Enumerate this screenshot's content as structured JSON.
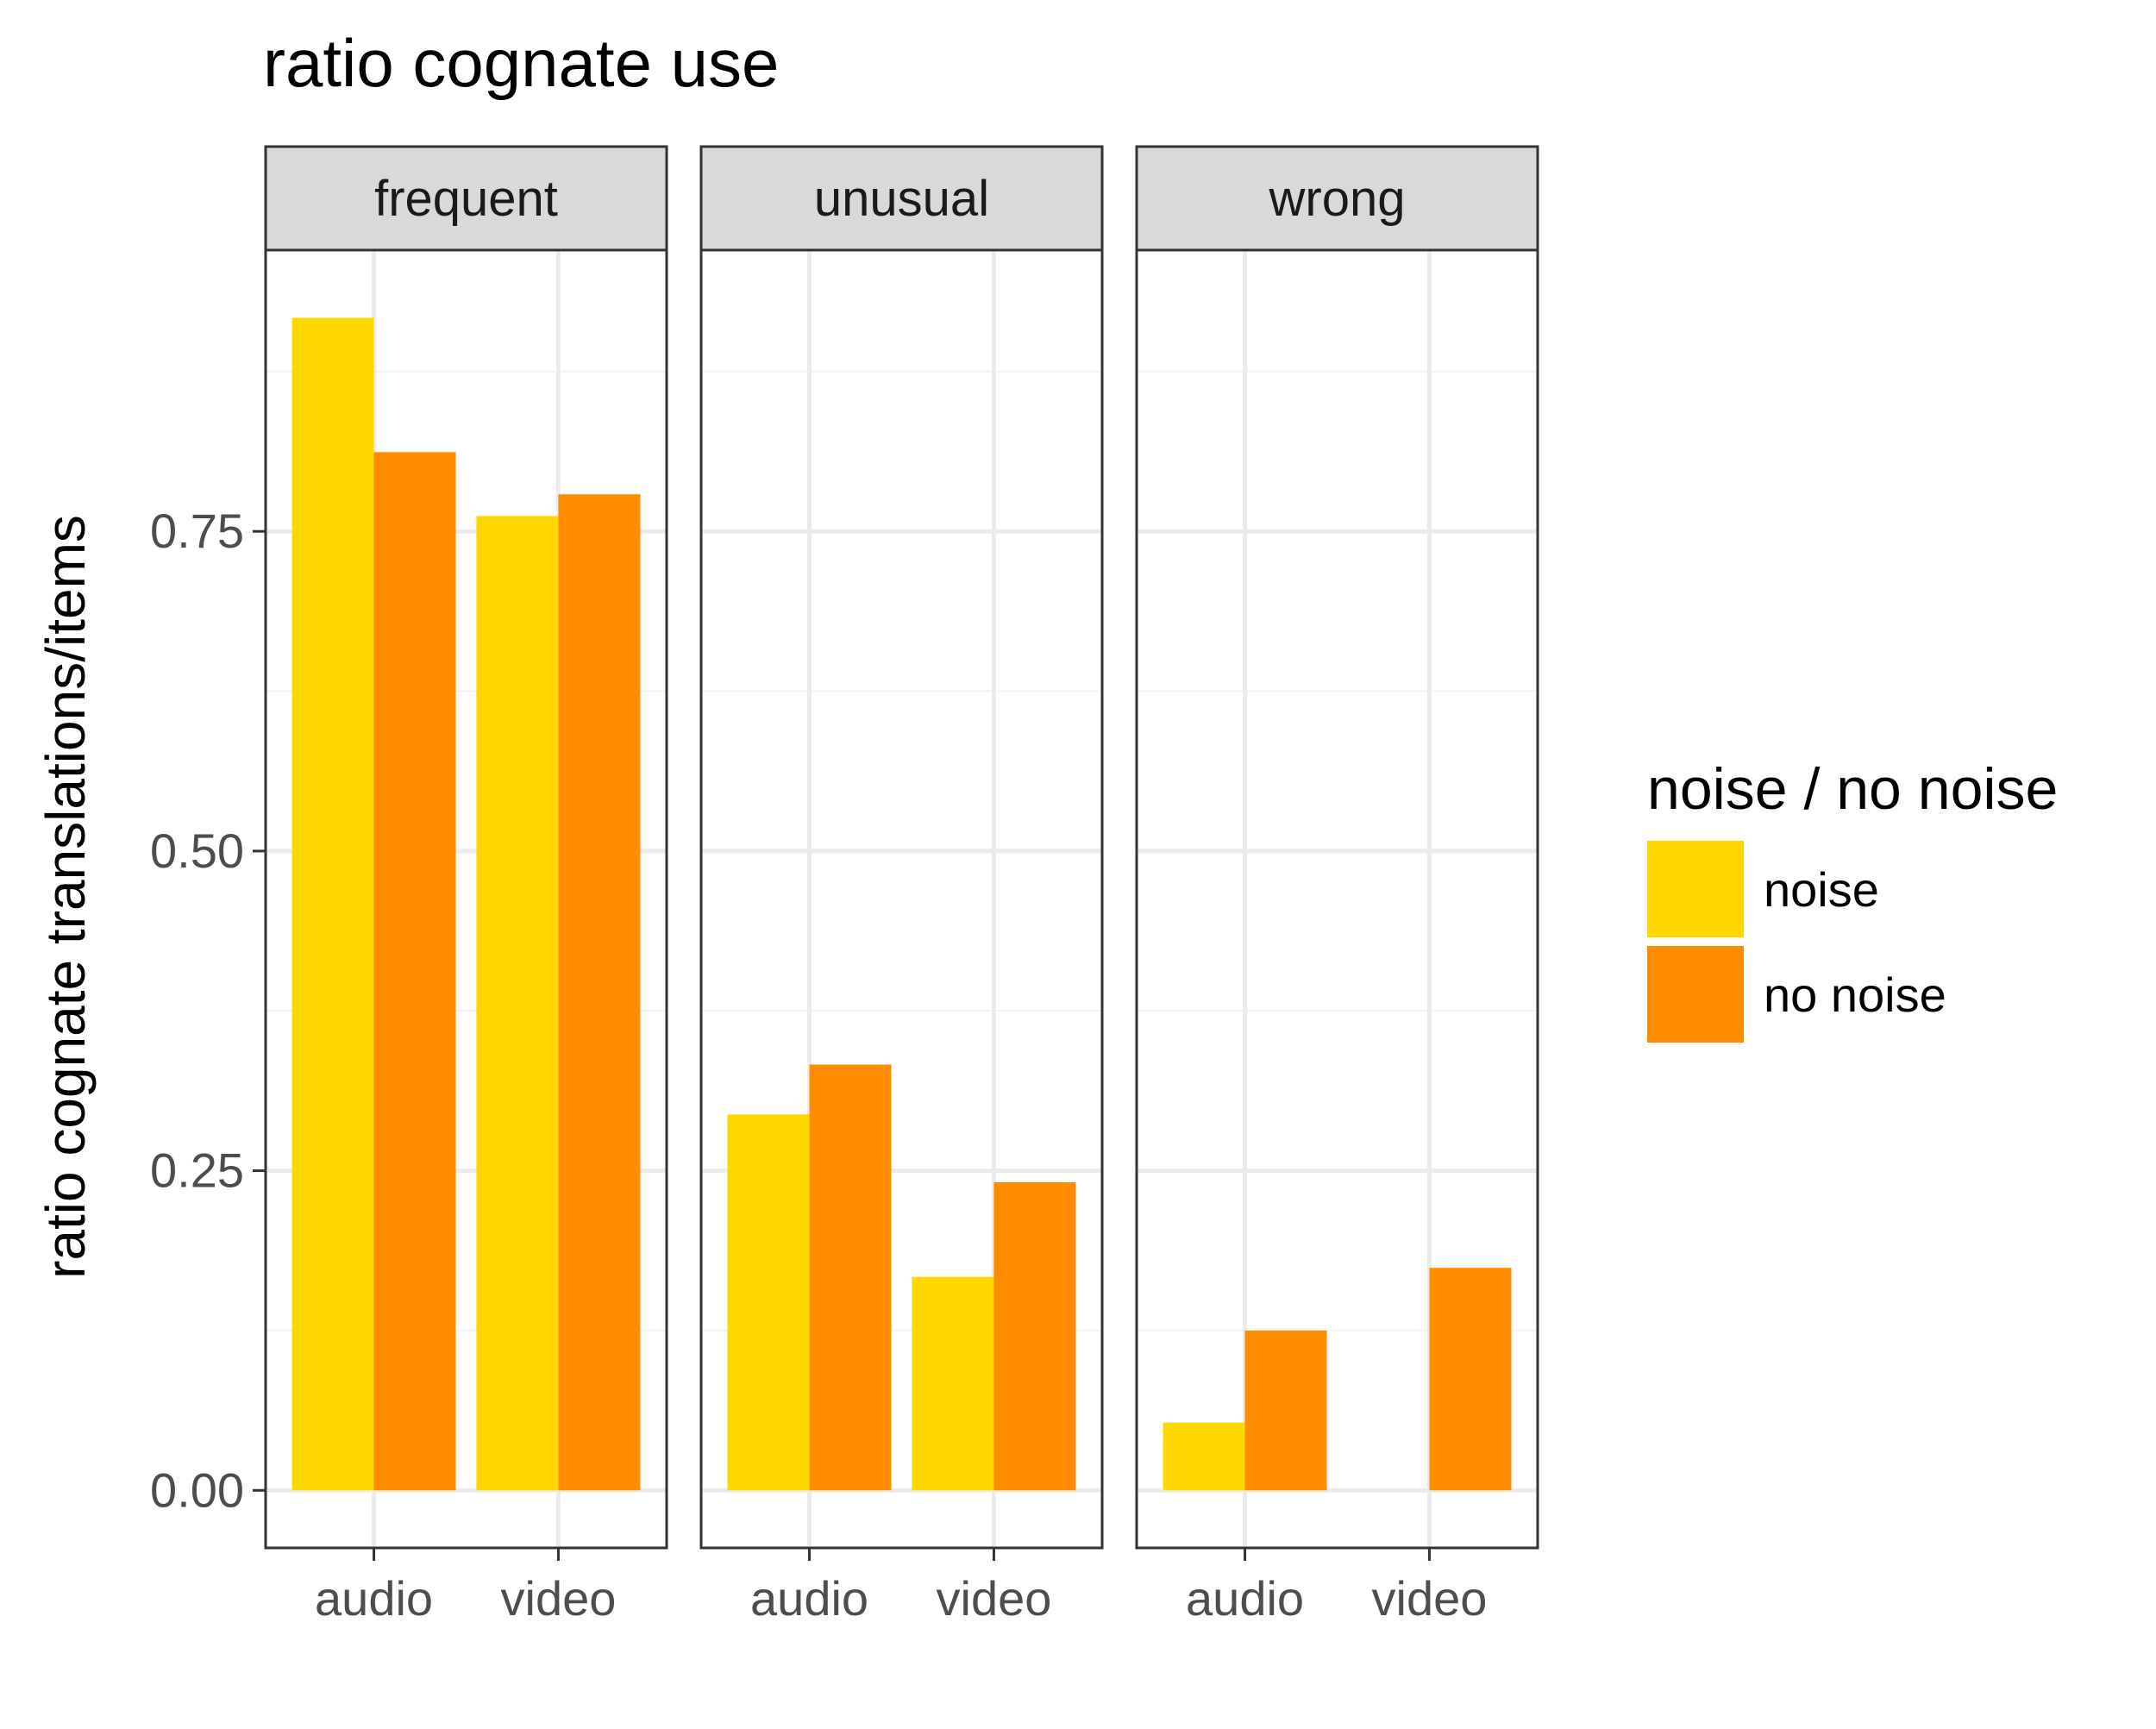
{
  "chart_data": {
    "type": "bar",
    "title": "ratio cognate use",
    "ylabel": "ratio cognate translations/items",
    "xlabel": "",
    "ylim": [
      -0.045,
      0.97
    ],
    "yticks": [
      0.0,
      0.25,
      0.5,
      0.75
    ],
    "ytick_labels": [
      "0.00",
      "0.25",
      "0.50",
      "0.75"
    ],
    "minor_gridlines": [
      0.125,
      0.375,
      0.625,
      0.875
    ],
    "grid": true,
    "categories": [
      "audio",
      "video"
    ],
    "legend": {
      "title": "noise / no noise",
      "placement": "right",
      "entries": [
        {
          "label": "noise",
          "color": "#FFD700"
        },
        {
          "label": "no noise",
          "color": "#FF8C00"
        }
      ]
    },
    "facets": [
      {
        "label": "frequent",
        "series": [
          {
            "name": "noise",
            "values": [
              0.917,
              0.762
            ]
          },
          {
            "name": "no noise",
            "values": [
              0.812,
              0.779
            ]
          }
        ]
      },
      {
        "label": "unusual",
        "series": [
          {
            "name": "noise",
            "values": [
              0.294,
              0.167
            ]
          },
          {
            "name": "no noise",
            "values": [
              0.333,
              0.241
            ]
          }
        ]
      },
      {
        "label": "wrong",
        "series": [
          {
            "name": "noise",
            "values": [
              0.053,
              0.0
            ]
          },
          {
            "name": "no noise",
            "values": [
              0.125,
              0.174
            ]
          }
        ]
      }
    ]
  }
}
